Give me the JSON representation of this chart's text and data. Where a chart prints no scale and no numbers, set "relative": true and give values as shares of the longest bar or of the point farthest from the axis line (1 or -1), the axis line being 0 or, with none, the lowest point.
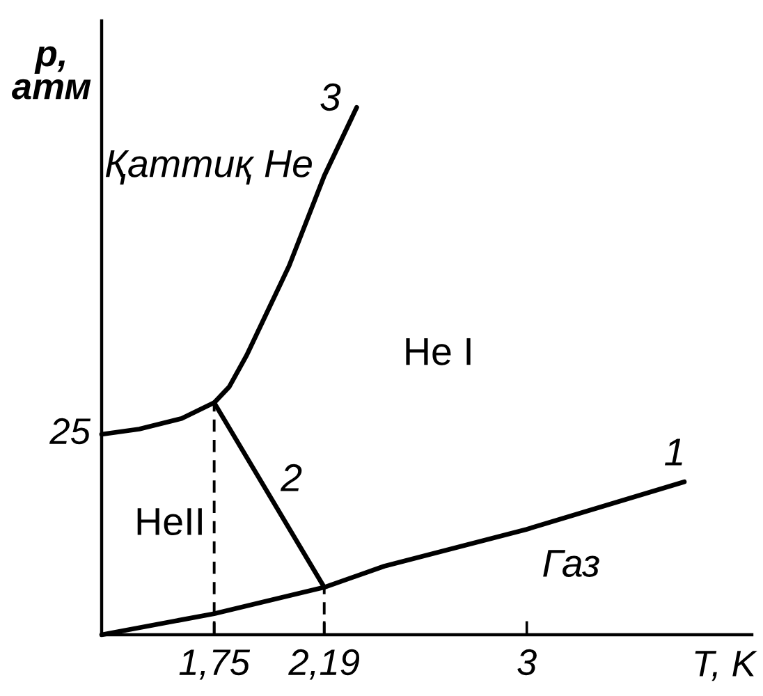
{
  "chart_data": {
    "type": "line",
    "xlabel": "T, K",
    "ylabel": "p,\nатм",
    "relative": true,
    "xlim": [
      1.3,
      3.9
    ],
    "xticks": [
      {
        "value": 1.75,
        "label": "1,75"
      },
      {
        "value": 2.19,
        "label": "2,19"
      },
      3
    ],
    "series": [
      {
        "name": "1",
        "color": "#000000",
        "x": [
          1.3,
          1.75,
          2.19,
          2.43,
          3,
          3.63
        ],
        "values": [
          0,
          0.04,
          0.09,
          0.13,
          0.2,
          0.29
        ]
      },
      {
        "name": "2",
        "color": "#000000",
        "x": [
          1.75,
          2.19
        ],
        "values": [
          0.44,
          0.09
        ]
      },
      {
        "name": "3",
        "color": "#000000",
        "x": [
          1.3,
          1.45,
          1.62,
          1.75,
          1.81,
          1.88,
          1.96,
          2.05,
          2.19,
          2.26,
          2.32
        ],
        "values": [
          0.38,
          0.39,
          0.41,
          0.44,
          0.47,
          0.53,
          0.61,
          0.7,
          0.87,
          0.94,
          1
        ]
      },
      {
        "line_style": "dashed",
        "color": "#000000",
        "x": [
          1.75,
          1.75
        ],
        "values": [
          0,
          0.44
        ]
      },
      {
        "line_style": "dashed",
        "color": "#000000",
        "x": [
          2.19,
          2.19
        ],
        "values": [
          0,
          0.09
        ]
      }
    ],
    "annotations": [
      "Қаттиқ He",
      "He I",
      "HeII",
      "Газ",
      {
        "text": "25",
        "x": 1.3,
        "y": 0.38
      }
    ]
  }
}
